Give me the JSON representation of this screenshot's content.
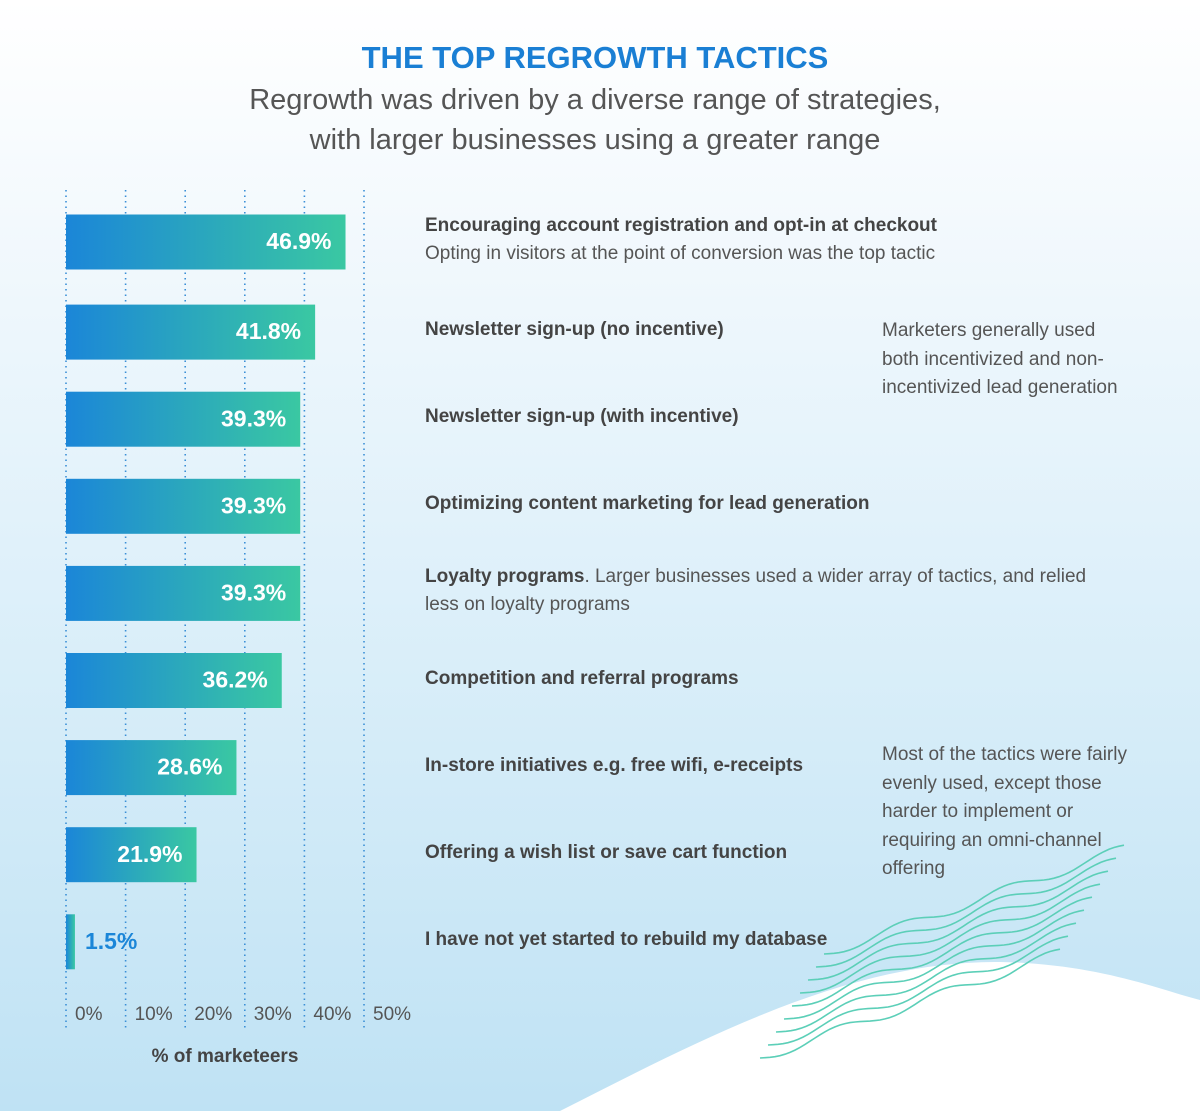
{
  "chart_data": {
    "type": "bar",
    "orientation": "horizontal",
    "title": "THE TOP REGROWTH TACTICS",
    "subtitle": [
      "Regrowth was driven by a diverse range of strategies,",
      "with larger businesses using a greater range"
    ],
    "categories": [
      "Encouraging account registration and opt-in at checkout",
      "Newsletter sign-up (no incentive)",
      "Newsletter sign-up (with incentive)",
      "Optimizing content marketing for lead generation",
      "Loyalty programs",
      "Competition and referral programs",
      "In-store initiatives e.g. free wifi, e-receipts",
      "Offering a wish list or save cart function",
      "I have not yet started to rebuild my database"
    ],
    "descriptions": [
      "Opting in visitors at the point of conversion was the top tactic",
      null,
      null,
      null,
      ". Larger businesses used a wider array of tactics, and relied less on loyalty programs",
      null,
      null,
      null,
      null
    ],
    "values": [
      46.9,
      41.8,
      39.3,
      39.3,
      39.3,
      36.2,
      28.6,
      21.9,
      1.5
    ],
    "value_labels": [
      "46.9%",
      "41.8%",
      "39.3%",
      "39.3%",
      "39.3%",
      "36.2%",
      "28.6%",
      "21.9%",
      "1.5%"
    ],
    "gradient": [
      "#1b86d8",
      "#3ac8a2"
    ],
    "xlim": [
      0,
      50
    ],
    "xticks": [
      {
        "value": 0,
        "label": "0%"
      },
      {
        "value": 10,
        "label": "10%"
      },
      {
        "value": 20,
        "label": "20%"
      },
      {
        "value": 30,
        "label": "30%"
      },
      {
        "value": 40,
        "label": "40%"
      },
      {
        "value": 50,
        "label": "50%"
      }
    ],
    "xlabel": "% of marketeers",
    "grid": true,
    "annotations": [
      "Marketers generally used both incentivized and non-incentivized lead generation",
      "Most of the tactics were fairly evenly used, except those harder to implement or requiring an omni-channel offering"
    ]
  }
}
